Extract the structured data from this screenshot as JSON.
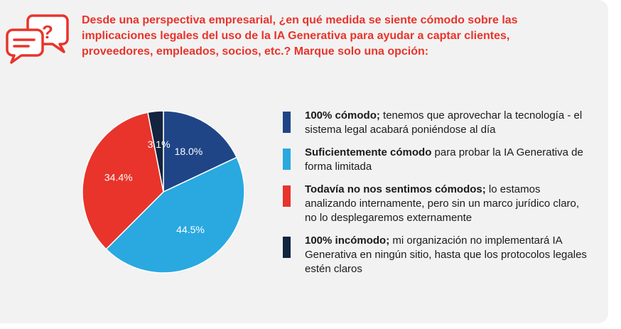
{
  "title_lines": [
    "Desde una perspectiva empresarial, ¿en qué medida se siente cómodo sobre las",
    "implicaciones legales del uso de la IA Generativa para ayudar a captar clientes,",
    "proveedores, empleados, socios, etc.? Marque solo una opción:"
  ],
  "icon": "chat-question-icon",
  "colors": {
    "accent": "#e8342b",
    "dark_blue": "#1f4587",
    "light_blue": "#29a9e0",
    "red": "#e8342b",
    "navy": "#12243f"
  },
  "chart_data": {
    "type": "pie",
    "title": "Desde una perspectiva empresarial, ¿en qué medida se siente cómodo sobre las implicaciones legales del uso de la IA Generativa para ayudar a captar clientes, proveedores, empleados, socios, etc.? Marque solo una opción:",
    "slices": [
      {
        "label": "100% cómodo",
        "value": 18.0,
        "display": "18.0%",
        "color": "#1f4587"
      },
      {
        "label": "Suficientemente cómodo",
        "value": 44.5,
        "display": "44.5%",
        "color": "#29a9e0"
      },
      {
        "label": "Todavía no nos sentimos cómodos",
        "value": 34.4,
        "display": "34.4%",
        "color": "#e8342b"
      },
      {
        "label": "100% incómodo",
        "value": 3.1,
        "display": "3.1%",
        "color": "#12243f"
      }
    ],
    "legend": [
      {
        "bold": "100% cómodo;",
        "rest": " tenemos que aprovechar la tecnología - el sistema legal acabará poniéndose al día",
        "color": "#1f4587"
      },
      {
        "bold": "Suficientemente cómodo",
        "rest": " para probar la IA Generativa de forma limitada",
        "color": "#29a9e0"
      },
      {
        "bold": "Todavía no nos sentimos cómodos;",
        "rest": " lo estamos analizando internamente, pero sin un marco jurídico claro, no lo desplegaremos externamente",
        "color": "#e8342b"
      },
      {
        "bold": "100% incómodo;",
        "rest": " mi organización no implementará IA Generativa en ningún sitio, hasta que los protocolos legales estén claros",
        "color": "#12243f"
      }
    ],
    "legend_placement": "right"
  }
}
